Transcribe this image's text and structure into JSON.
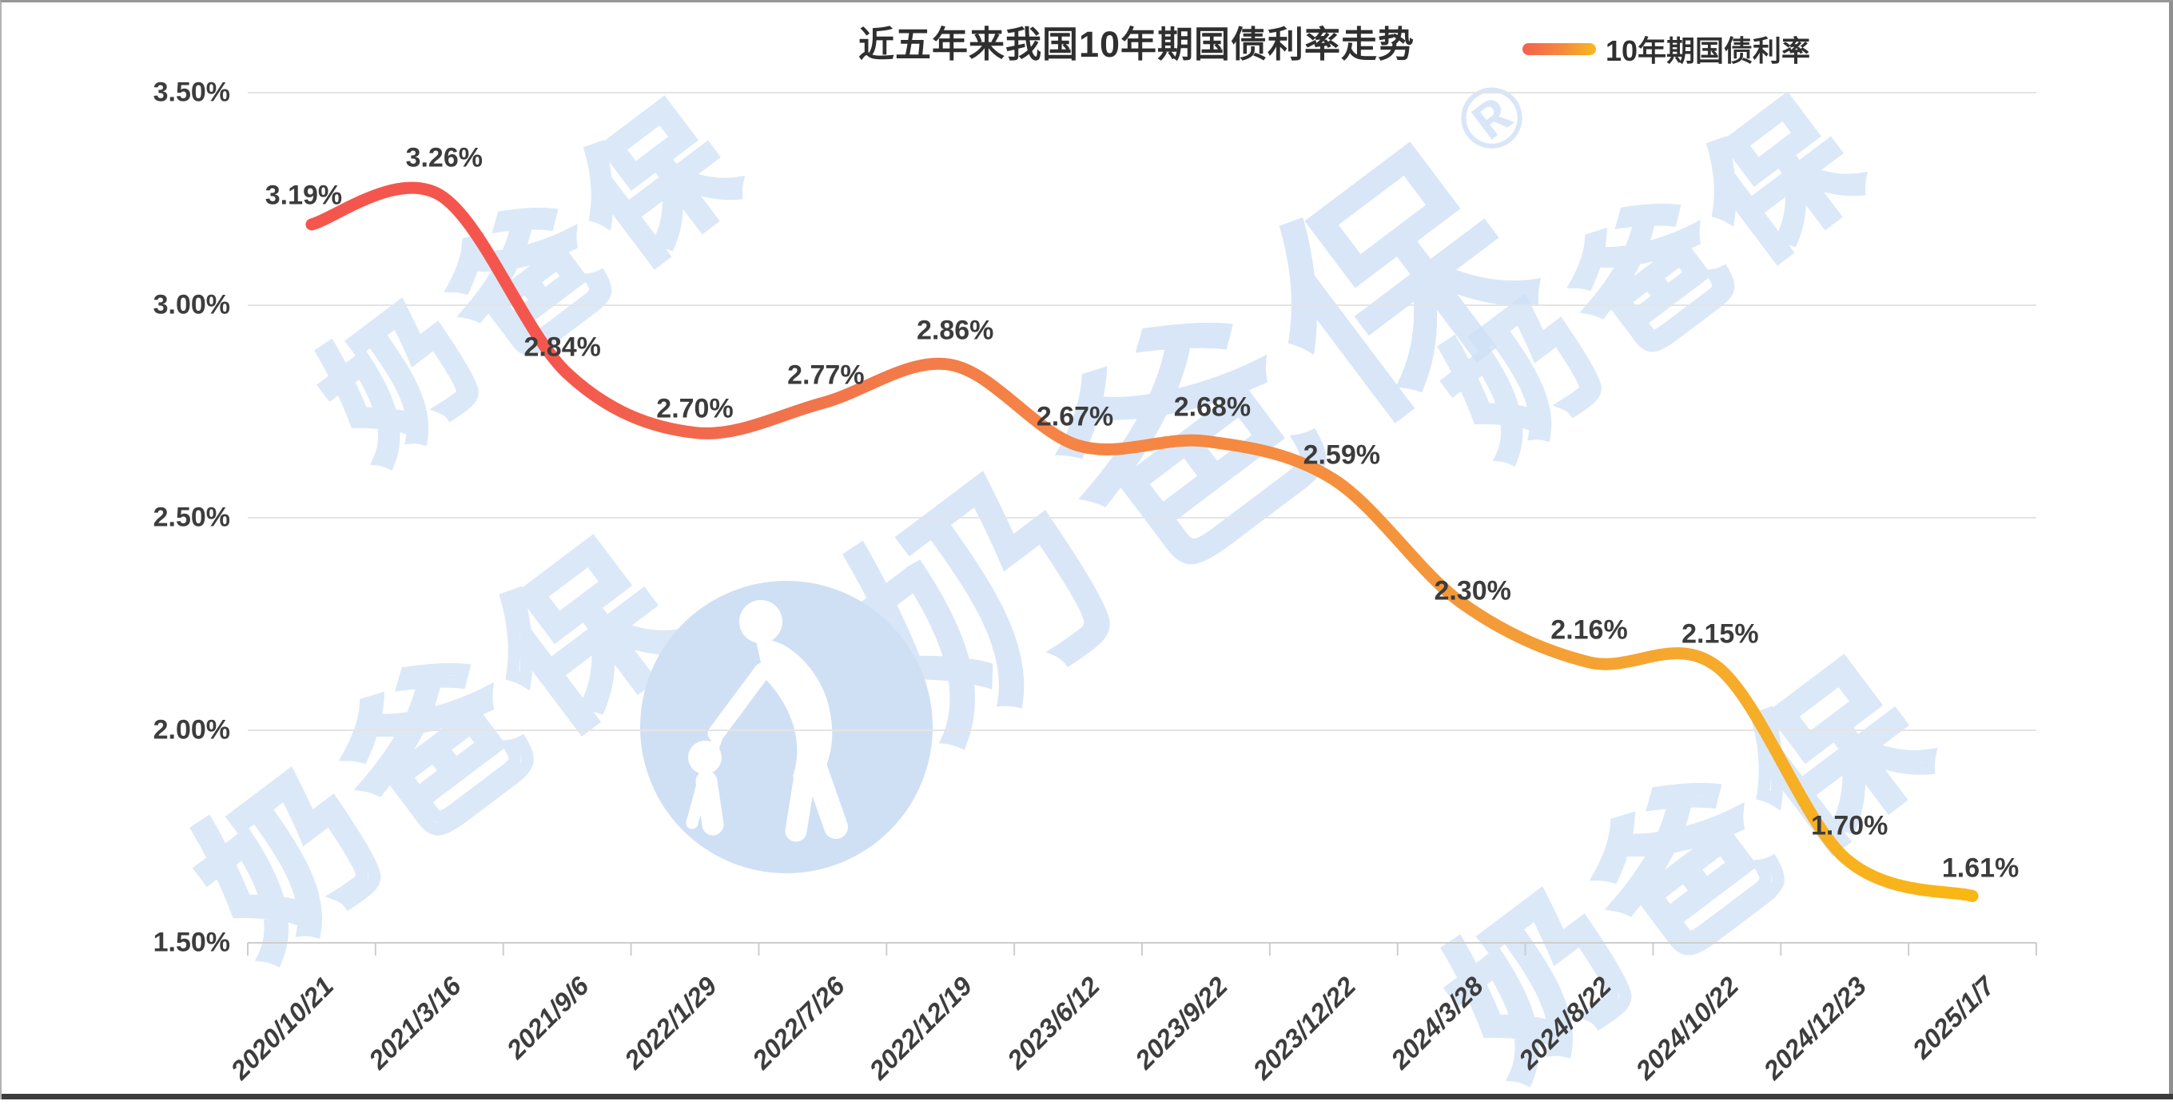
{
  "header": {
    "title": "近五年来我国10年期国债利率走势",
    "legend": {
      "label": "10年期国债利率"
    }
  },
  "watermark": {
    "text": "奶爸保",
    "registered": "®",
    "outline_color": "#dbe8f8",
    "solid_color": "#cfe1f7",
    "logo_circle_color": "#cfe0f5"
  },
  "chart_data": {
    "type": "line",
    "title": "近五年来我国10年期国债利率走势",
    "categories": [
      "2020/10/21",
      "2021/3/16",
      "2021/9/6",
      "2022/1/29",
      "2022/7/26",
      "2022/12/19",
      "2023/6/12",
      "2023/9/22",
      "2023/12/22",
      "2024/3/28",
      "2024/8/22",
      "2024/10/22",
      "2024/12/23",
      "2025/1/7"
    ],
    "series": [
      {
        "name": "10年期国债利率",
        "values": [
          3.19,
          3.26,
          2.84,
          2.7,
          2.77,
          2.86,
          2.67,
          2.68,
          2.59,
          2.3,
          2.16,
          2.15,
          1.7,
          1.61
        ],
        "point_labels": [
          "3.19%",
          "3.26%",
          "2.84%",
          "2.70%",
          "2.77%",
          "2.86%",
          "2.67%",
          "2.68%",
          "2.59%",
          "2.30%",
          "2.16%",
          "2.15%",
          "1.70%",
          "1.61%"
        ]
      }
    ],
    "xlabel": "",
    "ylabel": "",
    "ylim": [
      1.5,
      3.5
    ],
    "y_axis": {
      "ticks": [
        {
          "value": 3.5,
          "label": "3.50%"
        },
        {
          "value": 3.0,
          "label": "3.00%"
        },
        {
          "value": 2.5,
          "label": "2.50%"
        },
        {
          "value": 2.0,
          "label": "2.00%"
        },
        {
          "value": 1.5,
          "label": "1.50%"
        }
      ]
    },
    "grid": true,
    "legend_position": "top-right",
    "line_gradient": [
      "#f4564e",
      "#f4564e",
      "#f0734c",
      "#f58246",
      "#f58a40",
      "#f49b38",
      "#f6ac2a",
      "#f9b713"
    ],
    "grid_color": "#e4e4e4",
    "axis_color": "#cdcdcd",
    "label_color": "#3c3c3c"
  }
}
